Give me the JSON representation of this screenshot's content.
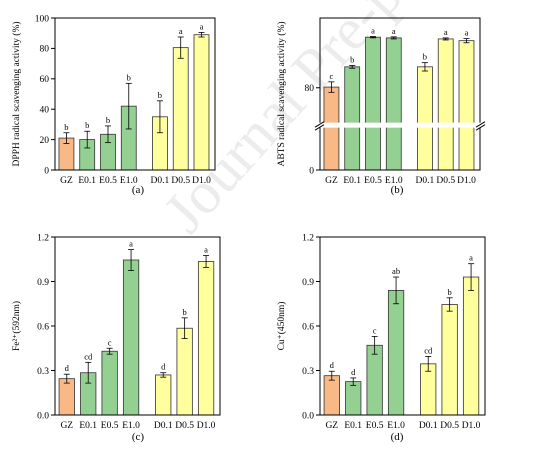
{
  "watermark": "Journal Pre-proof",
  "colors": {
    "control": "#F8B987",
    "ethanol": "#93D091",
    "dpph": "#FFFF9E",
    "edge": "#333333"
  },
  "chart_data": [
    {
      "type": "bar",
      "panel": "(a)",
      "ylabel": "DPPH radical scavenging activity (%)",
      "categories": [
        "GZ",
        "E0.1",
        "E0.5",
        "E1.0",
        "D0.1",
        "D0.5",
        "D1.0"
      ],
      "values": [
        21,
        20,
        23.5,
        42,
        35,
        80.5,
        89
      ],
      "errors": [
        3.5,
        5.5,
        5.5,
        15,
        10.5,
        7,
        1.5
      ],
      "letters": [
        "b",
        "b",
        "b",
        "b",
        "b",
        "a",
        "a"
      ],
      "ylim": [
        0,
        100
      ],
      "yticks": [
        0,
        20,
        40,
        60,
        80,
        100
      ]
    },
    {
      "type": "bar",
      "panel": "(b)",
      "ylabel": "ABTS radical scavenging activity (%)",
      "categories": [
        "GZ",
        "E0.1",
        "E0.5",
        "E1.0",
        "D0.1",
        "D0.5",
        "D1.0"
      ],
      "values": [
        80.2,
        86,
        94.5,
        94.3,
        86,
        94,
        93.5
      ],
      "errors": [
        1.5,
        0.4,
        0.2,
        0.3,
        1.2,
        0.3,
        0.6
      ],
      "letters": [
        "c",
        "b",
        "a",
        "a",
        "b",
        "a",
        "a"
      ],
      "ylim": [
        0,
        100
      ],
      "yticks": [
        0,
        80
      ],
      "axis_break": true
    },
    {
      "type": "bar",
      "panel": "(c)",
      "ylabel": "Fe²⁺(592nm)",
      "categories": [
        "GZ",
        "E0.1",
        "E0.5",
        "E1.0",
        "D0.1",
        "D0.5",
        "D1.0"
      ],
      "values": [
        0.245,
        0.285,
        0.43,
        1.045,
        0.27,
        0.585,
        1.035
      ],
      "errors": [
        0.03,
        0.07,
        0.02,
        0.07,
        0.015,
        0.07,
        0.04
      ],
      "letters": [
        "d",
        "cd",
        "c",
        "a",
        "d",
        "b",
        "a"
      ],
      "ylim": [
        0,
        1.2
      ],
      "yticks": [
        0,
        0.3,
        0.6,
        0.9,
        1.2
      ]
    },
    {
      "type": "bar",
      "panel": "(d)",
      "ylabel": "Cu⁺(450nm)",
      "categories": [
        "GZ",
        "E0.1",
        "E0.5",
        "E1.0",
        "D0.1",
        "D0.5",
        "D1.0"
      ],
      "values": [
        0.265,
        0.225,
        0.47,
        0.84,
        0.345,
        0.745,
        0.93
      ],
      "errors": [
        0.03,
        0.025,
        0.06,
        0.09,
        0.05,
        0.045,
        0.09
      ],
      "letters": [
        "d",
        "d",
        "c",
        "ab",
        "cd",
        "b",
        "a"
      ],
      "ylim": [
        0,
        1.2
      ],
      "yticks": [
        0,
        0.3,
        0.6,
        0.9,
        1.2
      ]
    }
  ]
}
